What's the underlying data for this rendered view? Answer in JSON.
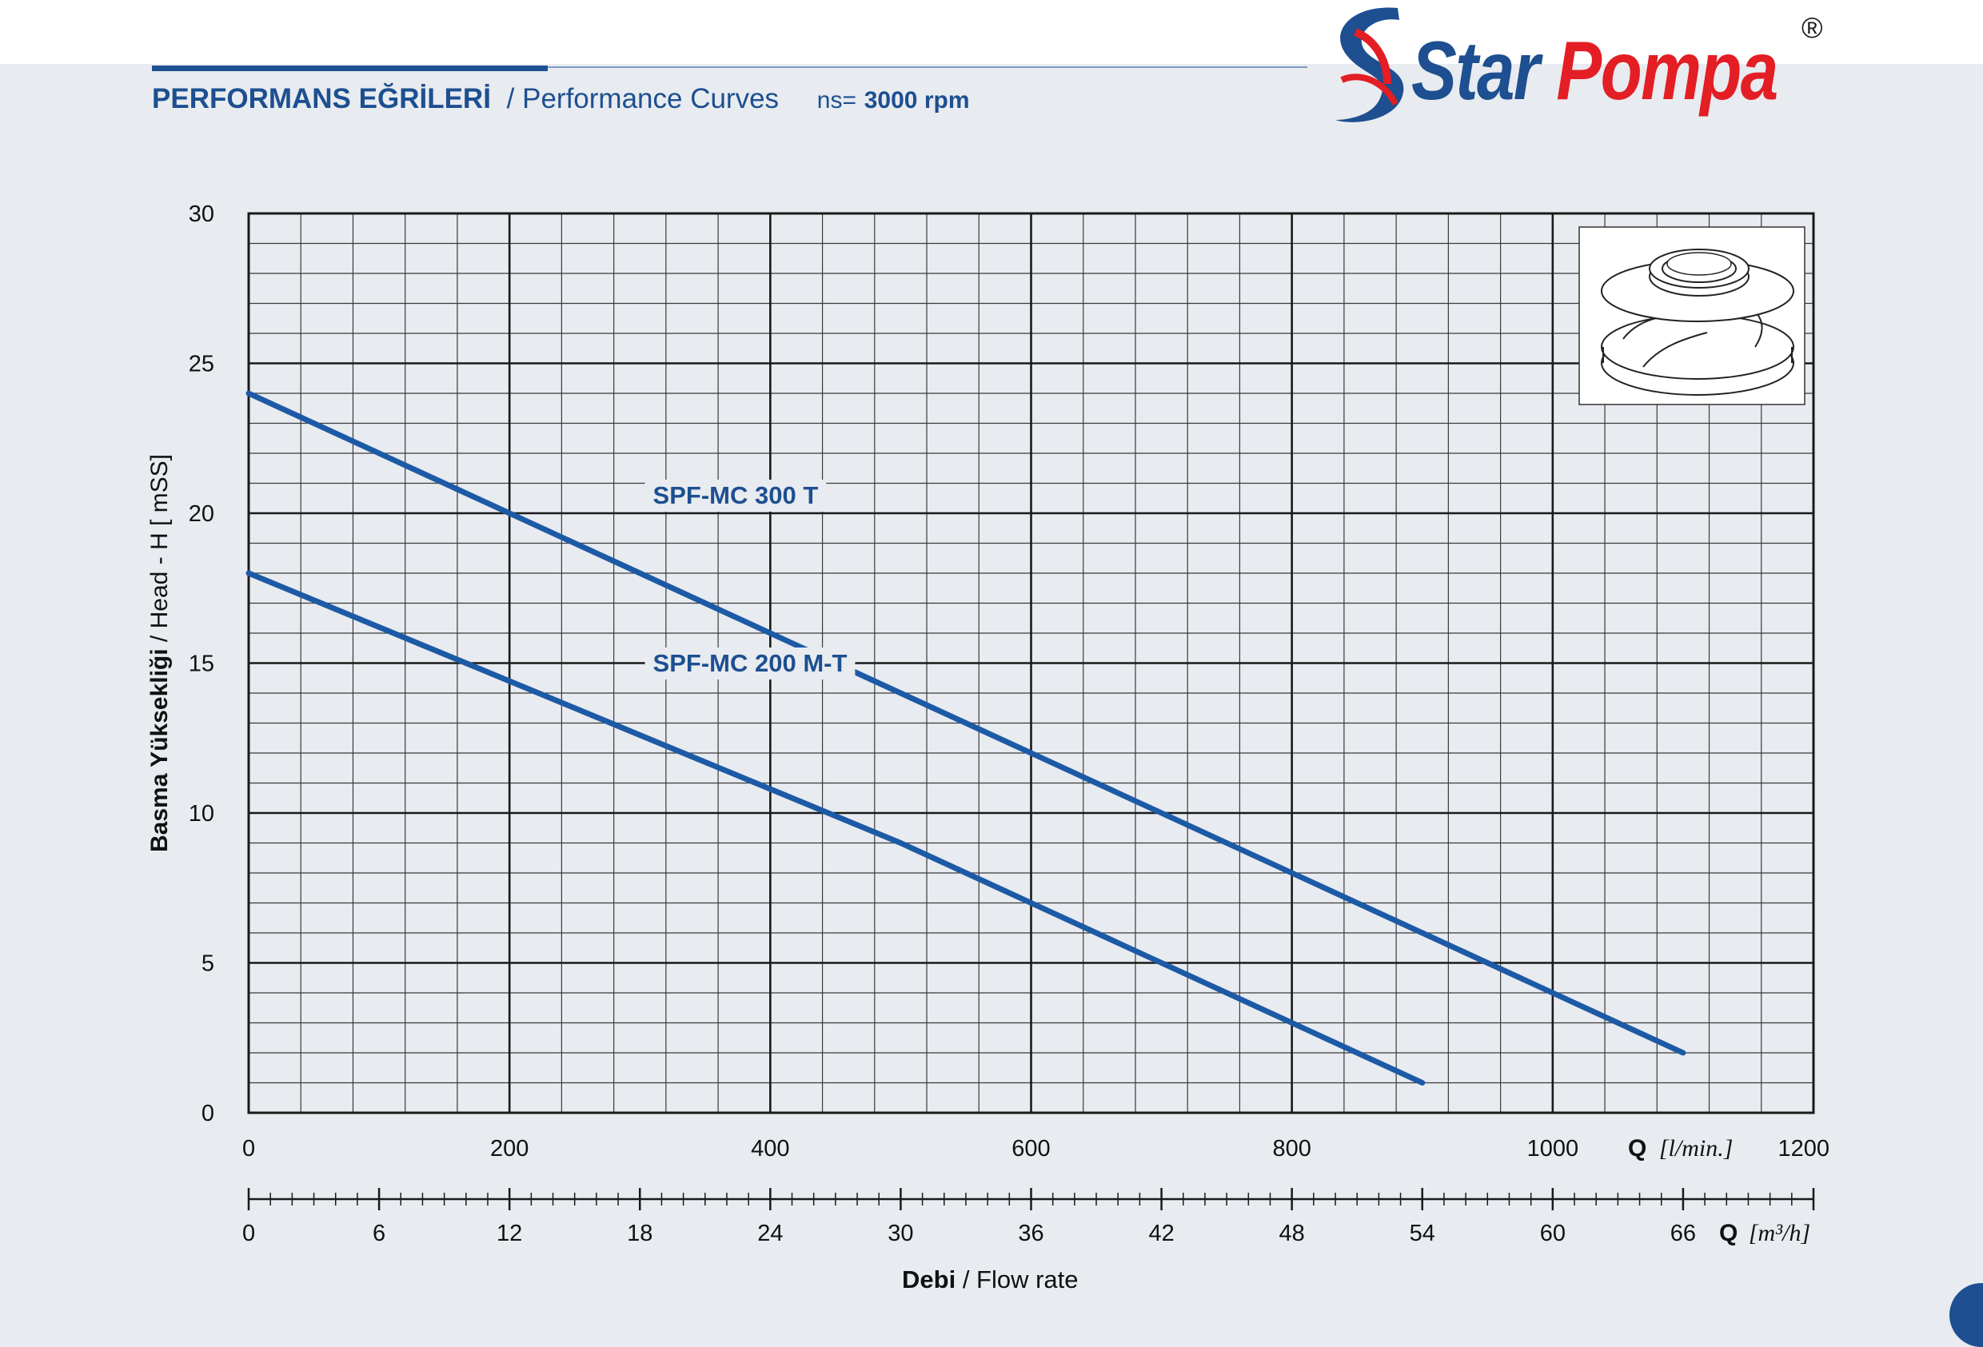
{
  "header": {
    "title_tr": "PERFORMANS EĞRİLERİ",
    "title_en": "/ Performance Curves",
    "ns_label": "ns=",
    "ns_value": "3000 rpm"
  },
  "brand": {
    "name_part1": "Star",
    "name_part2": "Pompa",
    "registered": "®",
    "primary_color": "#1d4f91",
    "accent_color": "#e31e24"
  },
  "chart_data": {
    "type": "line",
    "xlim": [
      0,
      1200
    ],
    "ylim": [
      0,
      30
    ],
    "grid": true,
    "y_ticks": [
      0,
      5,
      10,
      15,
      20,
      25,
      30
    ],
    "x_ticks_lmin": [
      0,
      200,
      400,
      600,
      800,
      1000,
      1200
    ],
    "x_ticks_m3h": [
      0,
      6,
      12,
      18,
      24,
      30,
      36,
      42,
      48,
      54,
      60,
      66
    ],
    "ylabel_bold": "Basma Yüksekliği",
    "ylabel_rest": "/ Head - H [ mSS]",
    "xlabel_bold": "Debi",
    "xlabel_rest": "/ Flow rate",
    "x_unit_lmin_q": "Q",
    "x_unit_lmin": "[l/min.]",
    "x_unit_m3h_q": "Q",
    "x_unit_m3h": "[m³/h]",
    "line_color": "#1d5aa6",
    "series": [
      {
        "name": "SPF-MC 300 T",
        "x": [
          0,
          200,
          400,
          600,
          700,
          800,
          1000,
          1100
        ],
        "y": [
          24,
          20,
          16,
          12,
          10,
          8,
          4,
          2
        ]
      },
      {
        "name": "SPF-MC 200 M-T",
        "x": [
          0,
          200,
          400,
          500,
          600,
          700,
          800,
          900
        ],
        "y": [
          18,
          14.4,
          10.8,
          9,
          7,
          5,
          3,
          1
        ]
      }
    ]
  }
}
